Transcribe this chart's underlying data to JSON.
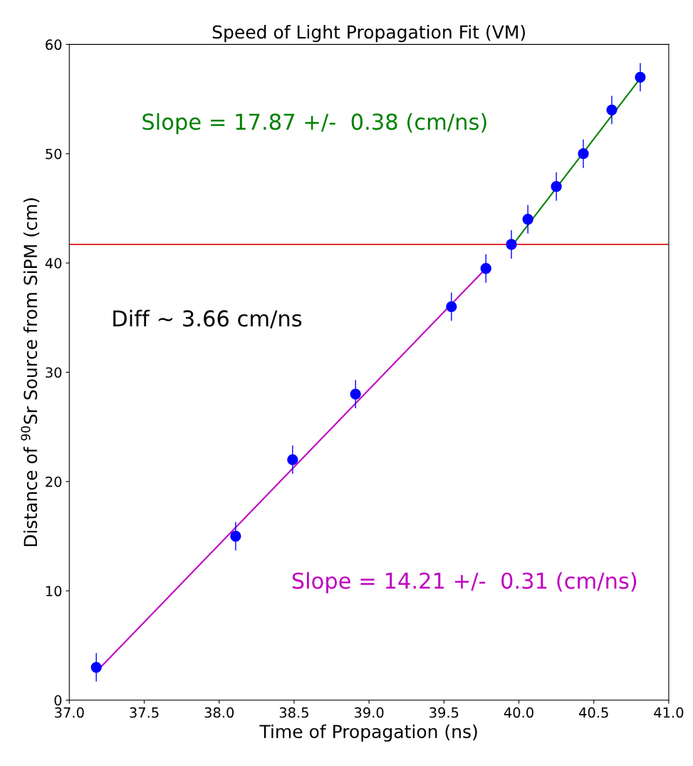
{
  "chart_data": {
    "type": "scatter",
    "title": "Speed of Light Propagation Fit (VM)",
    "xlabel": "Time of Propagation (ns)",
    "ylabel": "Distance of $^{90}$Sr Source from SiPM (cm)",
    "xlim": [
      37.0,
      41.0
    ],
    "xticks": [
      {
        "value": 37.0,
        "label": "37.0"
      },
      {
        "value": 37.5,
        "label": "37.5"
      },
      {
        "value": 38.0,
        "label": "38.0"
      },
      {
        "value": 38.5,
        "label": "38.5"
      },
      {
        "value": 39.0,
        "label": "39.0"
      },
      {
        "value": 39.5,
        "label": "39.5"
      },
      {
        "value": 40.0,
        "label": "40.0"
      },
      {
        "value": 40.5,
        "label": "40.5"
      },
      {
        "value": 41.0,
        "label": "41.0"
      }
    ],
    "ylim": [
      0,
      60
    ],
    "yticks": [
      0,
      10,
      20,
      30,
      40,
      50,
      60
    ],
    "grid": false,
    "series": [
      {
        "marker": "circle",
        "color": "#0000ff",
        "x": [
          37.18,
          38.11,
          38.49,
          38.91,
          39.55,
          39.78,
          39.95,
          40.06,
          40.25,
          40.43,
          40.62,
          40.81
        ],
        "values": [
          3.0,
          15.0,
          22.0,
          28.0,
          36.0,
          39.5,
          41.7,
          44.0,
          47.0,
          50.0,
          54.0,
          57.0
        ],
        "errors": [
          1.3,
          1.3,
          1.3,
          1.3,
          1.3,
          1.3,
          1.3,
          1.3,
          1.3,
          1.3,
          1.3,
          1.3
        ]
      },
      {
        "type": "line",
        "name": "Slope = 14.21 +/-  0.31 (cm/ns)",
        "color": "#bf00bf",
        "x": [
          37.18,
          39.78
        ],
        "values": [
          2.6,
          39.5
        ]
      },
      {
        "type": "line",
        "name": "Slope = 17.87 +/-  0.38 (cm/ns)",
        "color": "#008000",
        "x": [
          39.95,
          40.81
        ],
        "values": [
          41.5,
          56.9
        ]
      }
    ],
    "ref_lines": [
      {
        "axis": "y",
        "value": 41.7,
        "color": "#e03030"
      }
    ],
    "annotations": [
      "Diff ~ 3.66 cm/ns"
    ]
  }
}
